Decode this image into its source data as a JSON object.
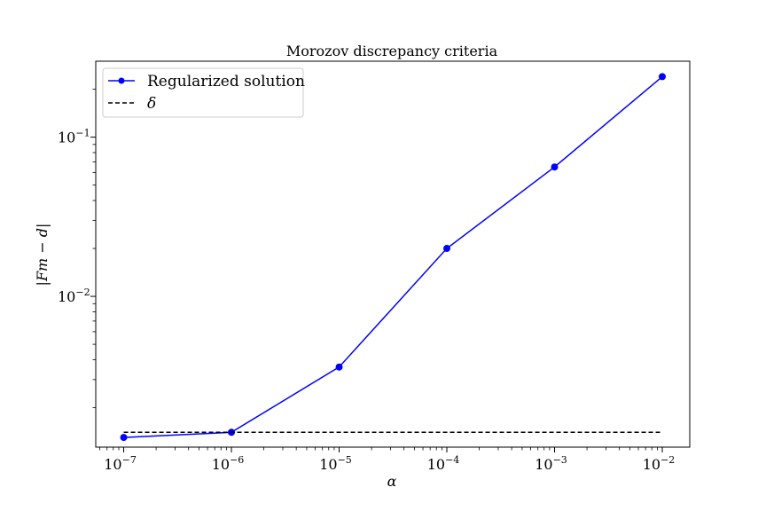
{
  "chart_data": {
    "type": "line",
    "title": "Morozov discrepancy criteria",
    "xlabel": "α",
    "ylabel": "|Fm − d|",
    "xscale": "log",
    "yscale": "log",
    "xlim": [
      5.5e-08,
      0.018
    ],
    "ylim": [
      0.00113,
      0.3
    ],
    "grid": false,
    "legend_position": "top-left",
    "x_ticks": [
      {
        "value": 1e-07,
        "base": "10",
        "exp": "−7"
      },
      {
        "value": 1e-06,
        "base": "10",
        "exp": "−6"
      },
      {
        "value": 1e-05,
        "base": "10",
        "exp": "−5"
      },
      {
        "value": 0.0001,
        "base": "10",
        "exp": "−4"
      },
      {
        "value": 0.001,
        "base": "10",
        "exp": "−3"
      },
      {
        "value": 0.01,
        "base": "10",
        "exp": "−2"
      }
    ],
    "y_ticks": [
      {
        "value": 0.01,
        "base": "10",
        "exp": "−2"
      },
      {
        "value": 0.1,
        "base": "10",
        "exp": "−1"
      }
    ],
    "series": [
      {
        "name": "Regularized solution",
        "color": "#0000ff",
        "style": "solid",
        "marker": "circle",
        "x": [
          1e-07,
          1e-06,
          1e-05,
          0.0001,
          0.001,
          0.01
        ],
        "y": [
          0.0013,
          0.0014,
          0.0036,
          0.02,
          0.065,
          0.24
        ]
      },
      {
        "name": "δ",
        "color": "#000000",
        "style": "dashed",
        "marker": "none",
        "x": [
          1e-07,
          0.01
        ],
        "y": [
          0.0014,
          0.0014
        ]
      }
    ]
  }
}
